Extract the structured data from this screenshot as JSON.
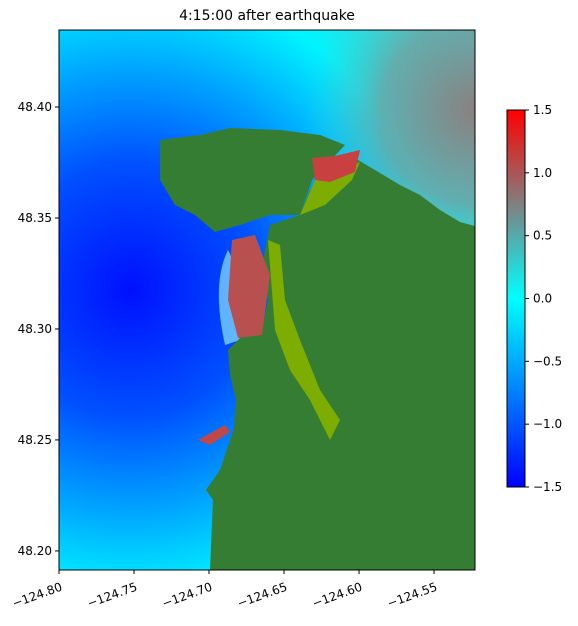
{
  "chart_data": {
    "type": "heatmap",
    "title": "4:15:00 after earthquake",
    "xlim": [
      -124.8,
      -124.5227
    ],
    "xticks": [
      {
        "value": -124.8,
        "label": "−124.80"
      },
      {
        "value": -124.75,
        "label": "−124.75"
      },
      {
        "value": -124.7,
        "label": "−124.70"
      },
      {
        "value": -124.65,
        "label": "−124.65"
      },
      {
        "value": -124.6,
        "label": "−124.60"
      },
      {
        "value": -124.55,
        "label": "−124.55"
      }
    ],
    "ylim": [
      48.1914,
      48.4347
    ],
    "yticks": [
      {
        "value": 48.2,
        "label": "48.20"
      },
      {
        "value": 48.25,
        "label": "48.25"
      },
      {
        "value": 48.3,
        "label": "48.30"
      },
      {
        "value": 48.35,
        "label": "48.35"
      },
      {
        "value": 48.4,
        "label": "48.40"
      }
    ],
    "colorbar": {
      "lim": [
        -1.5,
        1.5
      ],
      "ticks": [
        {
          "value": -1.5,
          "label": "−1.5"
        },
        {
          "value": -1,
          "label": "−1.0"
        },
        {
          "value": -0.5,
          "label": "−0.5"
        },
        {
          "value": 0,
          "label": "0.0"
        },
        0.5,
        {
          "value": 1,
          "label": "1.0"
        },
        1.5
      ],
      "colors": [
        "#0000ff",
        "#0080ff",
        "#00ffff",
        "#808080",
        "#ff0000"
      ]
    }
  }
}
